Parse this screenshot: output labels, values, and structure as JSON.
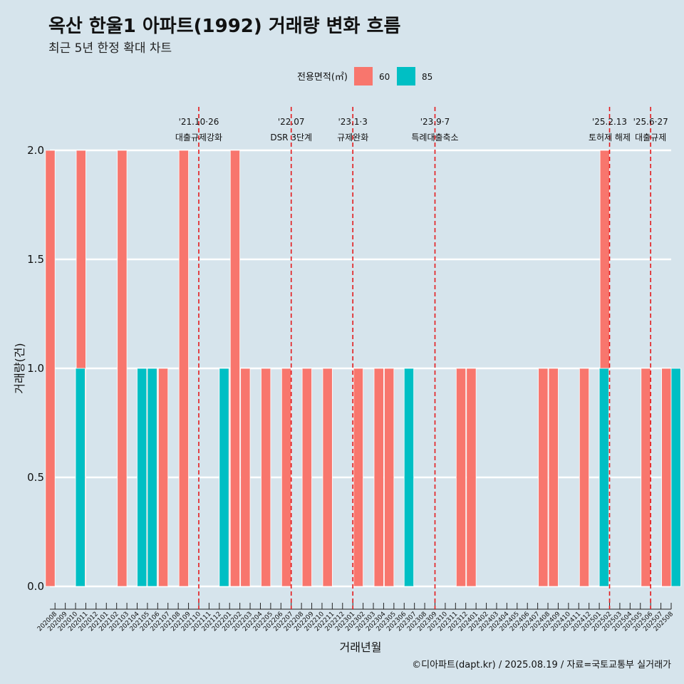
{
  "title": "옥산 한울1 아파트(1992) 거래량 변화 흐름",
  "subtitle": "최근 5년 한정 확대 차트",
  "caption": "©디아파트(dapt.kr) / 2025.08.19 / 자료=국토교통부 실거래가",
  "colors": {
    "s60": "#f8766d",
    "s85": "#00bfc4",
    "vline": "#e41a1c",
    "background": "#d6e4ec"
  },
  "chart_data": {
    "type": "bar",
    "xlabel": "거래년월",
    "ylabel": "거래량(건)",
    "ylim": [
      0,
      2
    ],
    "yticks": [
      "0.0",
      "0.5",
      "1.0",
      "1.5",
      "2.0"
    ],
    "legend_title": "전용면적(㎡)",
    "legend_position": "top",
    "grid": true,
    "categories": [
      "202008",
      "202009",
      "202010",
      "202011",
      "202012",
      "202101",
      "202102",
      "202103",
      "202104",
      "202105",
      "202106",
      "202107",
      "202108",
      "202109",
      "202110",
      "202111",
      "202112",
      "202201",
      "202202",
      "202203",
      "202204",
      "202205",
      "202206",
      "202207",
      "202208",
      "202209",
      "202210",
      "202211",
      "202212",
      "202301",
      "202302",
      "202303",
      "202304",
      "202305",
      "202306",
      "202307",
      "202308",
      "202309",
      "202310",
      "202311",
      "202312",
      "202401",
      "202402",
      "202403",
      "202404",
      "202405",
      "202406",
      "202407",
      "202408",
      "202409",
      "202410",
      "202411",
      "202412",
      "202501",
      "202502",
      "202503",
      "202504",
      "202505",
      "202506",
      "202507",
      "202508"
    ],
    "series": [
      {
        "name": "60",
        "color": "#f8766d",
        "values": [
          2,
          0,
          0,
          2,
          0,
          0,
          0,
          2,
          0,
          1,
          1,
          1,
          0,
          2,
          0,
          0,
          0,
          1,
          2,
          1,
          0,
          1,
          0,
          1,
          0,
          1,
          0,
          1,
          0,
          0,
          1,
          0,
          1,
          1,
          0,
          0,
          0,
          0,
          0,
          0,
          1,
          1,
          0,
          0,
          0,
          0,
          0,
          0,
          1,
          1,
          0,
          0,
          1,
          0,
          2,
          0,
          0,
          0,
          1,
          0,
          1
        ]
      },
      {
        "name": "85",
        "color": "#00bfc4",
        "values": [
          0,
          0,
          1,
          0,
          0,
          0,
          0,
          0,
          1,
          1,
          0,
          0,
          0,
          0,
          0,
          0,
          1,
          0,
          0,
          0,
          0,
          0,
          0,
          0,
          0,
          0,
          0,
          0,
          0,
          0,
          0,
          0,
          0,
          0,
          1,
          0,
          0,
          0,
          0,
          0,
          0,
          0,
          0,
          0,
          0,
          0,
          0,
          0,
          0,
          0,
          0,
          0,
          0,
          1,
          0,
          0,
          0,
          0,
          0,
          0,
          1
        ]
      }
    ],
    "annotations": [
      {
        "x": "202110",
        "date": "'21.10·26",
        "label": "대출규제강화"
      },
      {
        "x": "202207",
        "date": "'22.07",
        "label": "DSR 3단계"
      },
      {
        "x": "202301",
        "date": "'23.1·3",
        "label": "규제완화"
      },
      {
        "x": "202309",
        "date": "'23.9·7",
        "label": "특례대출축소"
      },
      {
        "x": "202502",
        "date": "'25.2.13",
        "label": "토허제 해제"
      },
      {
        "x": "202506",
        "date": "'25.6·27",
        "label": "대출규제"
      }
    ]
  }
}
